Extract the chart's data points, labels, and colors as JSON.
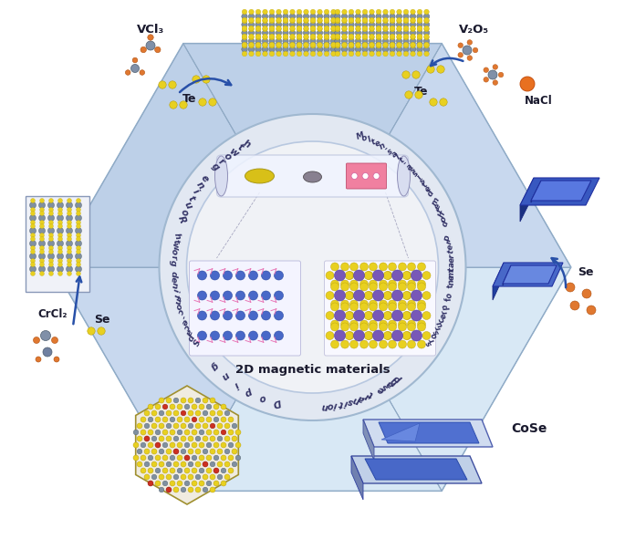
{
  "bg": "#ffffff",
  "hex_fill": "#cddcee",
  "hex_edge": "#8aaac8",
  "panel_top": "#d8e8f5",
  "panel_top_inner": "#e8f0f8",
  "panel_mid": "#c8d8ee",
  "panel_bot": "#bdd0e8",
  "ring_fill": "#e2e8f2",
  "ring_edge": "#b0bcd0",
  "center_fill": "#f0f2f6",
  "center_edge": "#c8cede",
  "label_color": "#333366",
  "text_color": "#1a1a2e",
  "arrow_color": "#2850a8",
  "yellow": "#e8d020",
  "yellow_e": "#b8a010",
  "grey": "#8090a0",
  "grey_e": "#506070",
  "orange": "#e07830",
  "orange_e": "#b05010",
  "blue_dark": "#2040a0",
  "blue_mid": "#3a60c0",
  "blue_light": "#6080d8",
  "pink": "#e080a8",
  "purple": "#8060b8",
  "red_dopant": "#cc3020",
  "labels": {
    "vcl3": "VCl₃",
    "v2o5": "V₂O₅",
    "nacl": "NaCl",
    "te": "Te",
    "se": "Se",
    "crcl2": "CrCl₂",
    "cose": "CoSe",
    "center": "2D magnetic materials",
    "routine": "Routine growth",
    "molten": "Molten-salt-assisted method",
    "pretreat": "Pretreatment of precursors",
    "phase": "Phase transition",
    "doping": "Doping",
    "space": "Space-confined growth"
  }
}
